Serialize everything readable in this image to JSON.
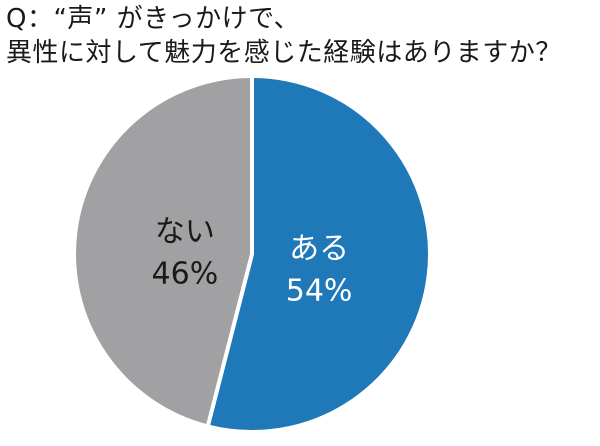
{
  "chart_data": {
    "type": "pie",
    "title_line1": "Q：“声” がきっかけで、",
    "title_line2": "異性に対して魅力を感じた経験はありますか？",
    "slices": [
      {
        "label": "ある",
        "value": 54,
        "value_text": "54%",
        "color": "#1f78b8",
        "text_color": "#ffffff"
      },
      {
        "label": "ない",
        "value": 46,
        "value_text": "46%",
        "color": "#a1a1a3",
        "text_color": "#1a1a1a"
      }
    ]
  }
}
